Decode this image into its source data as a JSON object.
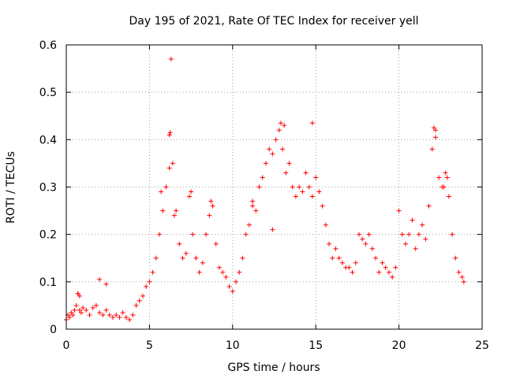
{
  "chart_data": {
    "type": "scatter",
    "title": "Day 195 of 2021, Rate Of TEC Index for receiver yell",
    "xlabel": "GPS time / hours",
    "ylabel": "ROTI / TECUs",
    "xlim": [
      0,
      25
    ],
    "ylim": [
      0,
      0.6
    ],
    "x_ticks": [
      "0",
      "5",
      "10",
      "15",
      "20",
      "25"
    ],
    "y_ticks": [
      "0",
      "0.1",
      "0.2",
      "0.3",
      "0.4",
      "0.5",
      "0.6"
    ],
    "grid": true,
    "marker": "+",
    "colors": {
      "points": "#ff0000",
      "grid": "#a0a0a0",
      "axes": "#000000"
    },
    "series": [
      {
        "x": [
          0.0,
          0.1,
          0.2,
          0.3,
          0.4,
          0.5,
          0.6,
          0.7,
          0.8,
          0.9,
          1.0,
          1.2,
          1.4,
          1.6,
          1.8,
          2.0,
          2.2,
          2.4,
          2.6,
          2.8,
          3.0,
          3.2,
          3.4,
          3.6,
          3.8,
          4.0,
          4.2,
          4.4,
          4.6,
          4.8,
          5.0,
          5.2,
          5.4,
          5.6,
          5.8,
          6.0,
          6.2,
          6.4,
          6.6,
          6.8,
          7.0,
          7.2,
          7.4,
          7.6,
          7.8,
          8.0,
          8.2,
          8.4,
          8.6,
          8.8,
          9.0,
          9.2,
          9.4,
          9.6,
          9.8,
          10.0,
          10.2,
          10.4,
          10.6,
          10.8,
          11.0,
          11.2,
          11.4,
          11.6,
          11.8,
          12.0,
          12.2,
          12.4,
          12.6,
          12.8,
          13.0,
          13.2,
          13.4,
          13.6,
          13.8,
          14.0,
          14.2,
          14.4,
          14.6,
          14.8,
          15.0,
          15.2,
          15.4,
          15.6,
          15.8,
          16.0,
          16.2,
          16.4,
          16.6,
          16.8,
          17.0,
          17.2,
          17.4,
          17.6,
          17.8,
          18.0,
          18.2,
          18.4,
          18.6,
          18.8,
          19.0,
          19.2,
          19.4,
          19.6,
          19.8,
          20.0,
          20.2,
          20.4,
          20.6,
          20.8,
          21.0,
          21.2,
          21.4,
          21.6,
          21.8,
          22.0,
          22.2,
          22.4,
          22.6,
          22.8,
          23.0,
          23.2,
          23.4,
          23.6,
          23.8,
          23.9,
          6.3,
          6.2,
          6.25,
          2.0,
          2.4,
          0.7,
          0.8,
          5.7,
          6.5,
          12.9,
          13.1,
          14.8,
          22.1,
          22.2,
          22.7,
          22.9,
          7.5,
          11.2,
          12.4,
          8.7
        ],
        "y": [
          0.02,
          0.03,
          0.025,
          0.035,
          0.03,
          0.04,
          0.05,
          0.075,
          0.04,
          0.035,
          0.045,
          0.04,
          0.03,
          0.045,
          0.05,
          0.035,
          0.03,
          0.04,
          0.03,
          0.025,
          0.03,
          0.025,
          0.035,
          0.025,
          0.02,
          0.03,
          0.05,
          0.06,
          0.07,
          0.09,
          0.1,
          0.12,
          0.15,
          0.2,
          0.25,
          0.3,
          0.34,
          0.35,
          0.25,
          0.18,
          0.15,
          0.16,
          0.28,
          0.2,
          0.15,
          0.12,
          0.14,
          0.2,
          0.24,
          0.26,
          0.18,
          0.13,
          0.12,
          0.11,
          0.09,
          0.08,
          0.1,
          0.12,
          0.15,
          0.2,
          0.22,
          0.26,
          0.25,
          0.3,
          0.32,
          0.35,
          0.38,
          0.37,
          0.4,
          0.42,
          0.38,
          0.33,
          0.35,
          0.3,
          0.28,
          0.3,
          0.29,
          0.33,
          0.3,
          0.28,
          0.32,
          0.29,
          0.26,
          0.22,
          0.18,
          0.15,
          0.17,
          0.15,
          0.14,
          0.13,
          0.13,
          0.12,
          0.14,
          0.2,
          0.19,
          0.18,
          0.2,
          0.17,
          0.15,
          0.12,
          0.14,
          0.13,
          0.12,
          0.11,
          0.13,
          0.25,
          0.2,
          0.18,
          0.2,
          0.23,
          0.17,
          0.2,
          0.22,
          0.19,
          0.26,
          0.38,
          0.42,
          0.32,
          0.3,
          0.33,
          0.28,
          0.2,
          0.15,
          0.12,
          0.11,
          0.1,
          0.57,
          0.41,
          0.415,
          0.105,
          0.095,
          0.075,
          0.07,
          0.29,
          0.24,
          0.435,
          0.43,
          0.435,
          0.425,
          0.405,
          0.3,
          0.32,
          0.29,
          0.27,
          0.21,
          0.27
        ]
      }
    ]
  }
}
